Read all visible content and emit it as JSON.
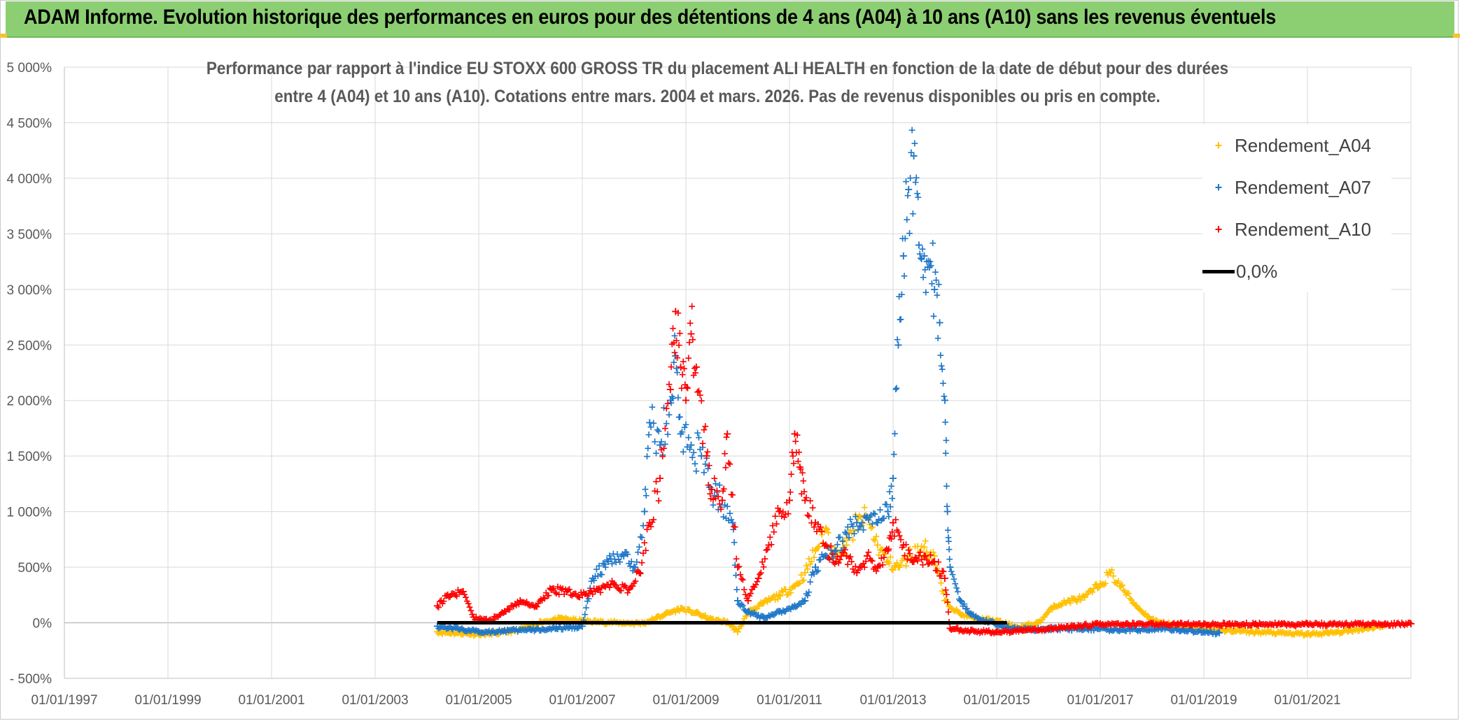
{
  "banner": {
    "title": "ADAM Informe. Evolution historique des performances en euros pour des détentions de 4 ans (A04) à 10 ans (A10) sans les revenus éventuels",
    "color": "#8ccf73"
  },
  "chart_data": {
    "type": "scatter",
    "title_line1": "Performance par rapport à l'indice EU STOXX 600 GROSS TR  du placement ALI HEALTH en fonction de la date de début pour des durées",
    "title_line2": "entre 4 (A04) et 10 ans (A10). Cotations entre mars. 2004 et mars. 2026. Pas de revenus disponibles ou pris en compte.",
    "xlim": [
      1997.0,
      2023.0
    ],
    "ylim": [
      -500,
      5000
    ],
    "xticks": [
      1997,
      1999,
      2001,
      2003,
      2005,
      2007,
      2009,
      2011,
      2013,
      2015,
      2017,
      2019,
      2021
    ],
    "xtick_labels": [
      "01/01/1997",
      "01/01/1999",
      "01/01/2001",
      "01/01/2003",
      "01/01/2005",
      "01/01/2007",
      "01/01/2009",
      "01/01/2011",
      "01/01/2013",
      "01/01/2015",
      "01/01/2017",
      "01/01/2019",
      "01/01/2021"
    ],
    "yticks": [
      -500,
      0,
      500,
      1000,
      1500,
      2000,
      2500,
      3000,
      3500,
      4000,
      4500,
      5000
    ],
    "ytick_labels": [
      "- 500%",
      "0%",
      "500%",
      "1 000%",
      "1 500%",
      "2 000%",
      "2 500%",
      "3 000%",
      "3 500%",
      "4 000%",
      "4 500%",
      "5 000%"
    ],
    "grid": true,
    "legend_position": "top-right",
    "series": [
      {
        "name": "Rendement_A04",
        "color": "#ffc000",
        "marker": "+",
        "points": [
          [
            2004.2,
            -80
          ],
          [
            2004.6,
            -90
          ],
          [
            2005.0,
            -100
          ],
          [
            2005.4,
            -90
          ],
          [
            2005.8,
            -60
          ],
          [
            2006.2,
            10
          ],
          [
            2006.6,
            40
          ],
          [
            2007.0,
            20
          ],
          [
            2007.4,
            10
          ],
          [
            2007.8,
            0
          ],
          [
            2008.2,
            0
          ],
          [
            2008.6,
            80
          ],
          [
            2008.9,
            130
          ],
          [
            2009.2,
            90
          ],
          [
            2009.5,
            30
          ],
          [
            2009.8,
            10
          ],
          [
            2010.0,
            -80
          ],
          [
            2010.2,
            100
          ],
          [
            2010.5,
            180
          ],
          [
            2010.8,
            250
          ],
          [
            2011.1,
            330
          ],
          [
            2011.3,
            450
          ],
          [
            2011.5,
            650
          ],
          [
            2011.7,
            850
          ],
          [
            2011.9,
            600
          ],
          [
            2012.1,
            700
          ],
          [
            2012.3,
            900
          ],
          [
            2012.5,
            950
          ],
          [
            2012.7,
            700
          ],
          [
            2012.9,
            550
          ],
          [
            2013.1,
            500
          ],
          [
            2013.3,
            600
          ],
          [
            2013.6,
            680
          ],
          [
            2013.8,
            600
          ],
          [
            2014.0,
            200
          ],
          [
            2014.3,
            80
          ],
          [
            2014.6,
            40
          ],
          [
            2015.0,
            20
          ],
          [
            2015.4,
            -40
          ],
          [
            2015.8,
            0
          ],
          [
            2016.1,
            150
          ],
          [
            2016.4,
            200
          ],
          [
            2016.7,
            230
          ],
          [
            2017.0,
            350
          ],
          [
            2017.2,
            450
          ],
          [
            2017.4,
            330
          ],
          [
            2017.7,
            150
          ],
          [
            2018.0,
            30
          ],
          [
            2018.4,
            -20
          ],
          [
            2018.8,
            -40
          ],
          [
            2019.2,
            -60
          ],
          [
            2019.6,
            -70
          ],
          [
            2020.0,
            -80
          ],
          [
            2020.5,
            -90
          ],
          [
            2021.0,
            -100
          ],
          [
            2021.4,
            -90
          ],
          [
            2021.8,
            -70
          ],
          [
            2022.2,
            -40
          ],
          [
            2022.5,
            -20
          ]
        ]
      },
      {
        "name": "Rendement_A07",
        "color": "#1f77c8",
        "marker": "+",
        "points": [
          [
            2004.2,
            -30
          ],
          [
            2004.6,
            -50
          ],
          [
            2005.0,
            -80
          ],
          [
            2005.5,
            -70
          ],
          [
            2006.0,
            -60
          ],
          [
            2006.5,
            -50
          ],
          [
            2007.0,
            -30
          ],
          [
            2007.2,
            400
          ],
          [
            2007.5,
            550
          ],
          [
            2007.8,
            600
          ],
          [
            2008.0,
            500
          ],
          [
            2008.2,
            1000
          ],
          [
            2008.3,
            1800
          ],
          [
            2008.5,
            1600
          ],
          [
            2008.7,
            2000
          ],
          [
            2008.8,
            2400
          ],
          [
            2008.9,
            1700
          ],
          [
            2009.1,
            1600
          ],
          [
            2009.3,
            1500
          ],
          [
            2009.5,
            1200
          ],
          [
            2009.7,
            1100
          ],
          [
            2009.9,
            900
          ],
          [
            2010.0,
            200
          ],
          [
            2010.2,
            100
          ],
          [
            2010.5,
            50
          ],
          [
            2010.8,
            100
          ],
          [
            2011.1,
            150
          ],
          [
            2011.3,
            200
          ],
          [
            2011.5,
            500
          ],
          [
            2011.7,
            600
          ],
          [
            2011.9,
            650
          ],
          [
            2012.1,
            800
          ],
          [
            2012.3,
            900
          ],
          [
            2012.5,
            950
          ],
          [
            2012.7,
            900
          ],
          [
            2012.9,
            1000
          ],
          [
            2013.0,
            1300
          ],
          [
            2013.1,
            2500
          ],
          [
            2013.2,
            3300
          ],
          [
            2013.3,
            3900
          ],
          [
            2013.4,
            4200
          ],
          [
            2013.5,
            3400
          ],
          [
            2013.6,
            3300
          ],
          [
            2013.7,
            3200
          ],
          [
            2013.8,
            3000
          ],
          [
            2013.9,
            2700
          ],
          [
            2014.0,
            2000
          ],
          [
            2014.05,
            1000
          ],
          [
            2014.1,
            500
          ],
          [
            2014.3,
            200
          ],
          [
            2014.5,
            80
          ],
          [
            2014.8,
            20
          ],
          [
            2015.2,
            -40
          ],
          [
            2015.7,
            -60
          ],
          [
            2016.2,
            -50
          ],
          [
            2016.7,
            -50
          ],
          [
            2017.2,
            -60
          ],
          [
            2017.7,
            -60
          ],
          [
            2018.2,
            -50
          ],
          [
            2018.6,
            -60
          ],
          [
            2019.0,
            -80
          ],
          [
            2019.3,
            -90
          ]
        ]
      },
      {
        "name": "Rendement_A10",
        "color": "#ff0000",
        "marker": "+",
        "points": [
          [
            2004.2,
            150
          ],
          [
            2004.4,
            250
          ],
          [
            2004.7,
            280
          ],
          [
            2004.9,
            50
          ],
          [
            2005.2,
            20
          ],
          [
            2005.5,
            100
          ],
          [
            2005.8,
            200
          ],
          [
            2006.1,
            150
          ],
          [
            2006.4,
            300
          ],
          [
            2006.7,
            280
          ],
          [
            2007.0,
            250
          ],
          [
            2007.3,
            300
          ],
          [
            2007.6,
            350
          ],
          [
            2007.9,
            300
          ],
          [
            2008.1,
            450
          ],
          [
            2008.3,
            900
          ],
          [
            2008.5,
            1300
          ],
          [
            2008.7,
            2100
          ],
          [
            2008.8,
            2800
          ],
          [
            2008.9,
            2300
          ],
          [
            2009.0,
            2000
          ],
          [
            2009.1,
            2600
          ],
          [
            2009.2,
            2300
          ],
          [
            2009.4,
            1500
          ],
          [
            2009.5,
            1200
          ],
          [
            2009.7,
            1100
          ],
          [
            2009.8,
            1700
          ],
          [
            2010.0,
            500
          ],
          [
            2010.2,
            200
          ],
          [
            2010.4,
            400
          ],
          [
            2010.6,
            700
          ],
          [
            2010.8,
            1000
          ],
          [
            2011.0,
            1100
          ],
          [
            2011.1,
            1700
          ],
          [
            2011.2,
            1400
          ],
          [
            2011.3,
            1100
          ],
          [
            2011.5,
            900
          ],
          [
            2011.7,
            700
          ],
          [
            2011.9,
            550
          ],
          [
            2012.1,
            600
          ],
          [
            2012.3,
            450
          ],
          [
            2012.5,
            600
          ],
          [
            2012.7,
            500
          ],
          [
            2012.9,
            650
          ],
          [
            2013.0,
            900
          ],
          [
            2013.2,
            700
          ],
          [
            2013.4,
            550
          ],
          [
            2013.6,
            600
          ],
          [
            2013.8,
            550
          ],
          [
            2014.0,
            400
          ],
          [
            2014.1,
            -50
          ],
          [
            2014.5,
            -70
          ],
          [
            2015.0,
            -80
          ],
          [
            2015.5,
            -70
          ],
          [
            2016.0,
            -50
          ],
          [
            2016.5,
            -30
          ],
          [
            2017.0,
            -10
          ],
          [
            2017.5,
            -10
          ],
          [
            2018.0,
            -10
          ],
          [
            2018.5,
            -10
          ],
          [
            2019.0,
            -10
          ],
          [
            2019.5,
            -10
          ],
          [
            2020.0,
            -10
          ],
          [
            2020.5,
            -10
          ],
          [
            2021.0,
            -10
          ],
          [
            2021.5,
            -10
          ],
          [
            2022.0,
            -10
          ],
          [
            2022.5,
            -10
          ],
          [
            2023.0,
            -10
          ]
        ]
      },
      {
        "name": "0,0%",
        "color": "#000000",
        "marker": "line",
        "points": [
          [
            2004.2,
            0
          ],
          [
            2015.2,
            0
          ]
        ]
      }
    ]
  }
}
